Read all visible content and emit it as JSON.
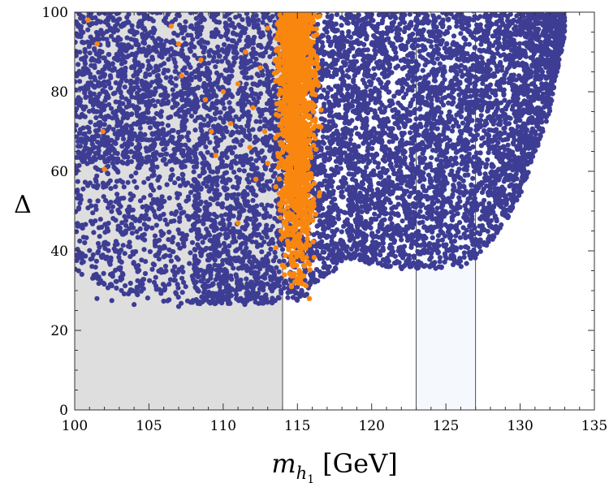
{
  "chart_data": {
    "type": "scatter",
    "title": "",
    "xlabel": {
      "symbol": "m",
      "subscript_base": "h",
      "subscript_index": "1",
      "unit": "[GeV]"
    },
    "ylabel": "Δ",
    "xlim": [
      100,
      135
    ],
    "ylim": [
      0,
      100
    ],
    "x_ticks": [
      "100",
      "105",
      "110",
      "115",
      "120",
      "125",
      "130",
      "135"
    ],
    "y_ticks": [
      "0",
      "20",
      "40",
      "60",
      "80",
      "100"
    ],
    "shaded_regions": [
      {
        "name": "excluded-region",
        "x": [
          100,
          114
        ],
        "y": [
          0,
          100
        ],
        "color": "#dedede"
      },
      {
        "name": "higgs-window",
        "x": [
          123,
          127
        ],
        "y": [
          0,
          100
        ],
        "color": "#f5f9fd"
      }
    ],
    "series": [
      {
        "name": "all-points",
        "color": "#3d3d94",
        "envelope_xy": [
          [
            100,
            35
          ],
          [
            102,
            31
          ],
          [
            104,
            28
          ],
          [
            106,
            27
          ],
          [
            108,
            26.5
          ],
          [
            110,
            26.5
          ],
          [
            112,
            26.5
          ],
          [
            114,
            27
          ],
          [
            115,
            27.5
          ],
          [
            116,
            30
          ],
          [
            117,
            33
          ],
          [
            118,
            37
          ],
          [
            119,
            38
          ],
          [
            120,
            36.5
          ],
          [
            122,
            35.5
          ],
          [
            124,
            35.5
          ],
          [
            126,
            36
          ],
          [
            127,
            38
          ],
          [
            128,
            42
          ],
          [
            129,
            47
          ],
          [
            130,
            54
          ],
          [
            131,
            64
          ],
          [
            132,
            75
          ],
          [
            132.5,
            85
          ],
          [
            133,
            94
          ],
          [
            133,
            100
          ]
        ],
        "outliers_xy": [
          [
            101.5,
            28
          ],
          [
            102.5,
            27.5
          ],
          [
            104,
            26.5
          ],
          [
            107,
            26
          ],
          [
            110.5,
            30
          ],
          [
            112,
            29
          ],
          [
            113.5,
            27.5
          ]
        ]
      },
      {
        "name": "m_h_near_115",
        "color": "#f9870f",
        "dense_band_x": [
          113.2,
          116.7
        ],
        "dense_band_y_min": 27,
        "points_xy": [
          [
            100.9,
            98
          ],
          [
            101.5,
            92
          ],
          [
            101.9,
            70
          ],
          [
            102,
            60.5
          ],
          [
            106.5,
            96.5
          ],
          [
            107,
            92
          ],
          [
            107.2,
            84
          ],
          [
            108.5,
            88
          ],
          [
            108.8,
            78
          ],
          [
            109.2,
            70
          ],
          [
            109.5,
            64
          ],
          [
            110,
            80
          ],
          [
            110.5,
            72
          ],
          [
            111,
            82
          ],
          [
            111,
            47
          ],
          [
            111.5,
            90
          ],
          [
            111.8,
            66
          ],
          [
            112,
            76
          ],
          [
            112.2,
            58
          ],
          [
            112.5,
            86
          ],
          [
            112.8,
            70
          ],
          [
            113,
            62
          ],
          [
            113,
            96
          ],
          [
            114.6,
            31
          ],
          [
            115.8,
            28
          ],
          [
            116.5,
            99
          ]
        ]
      }
    ]
  }
}
